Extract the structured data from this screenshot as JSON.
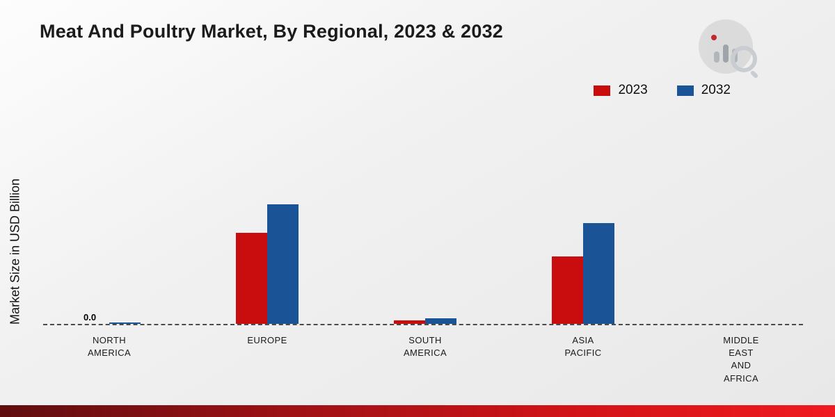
{
  "title": "Meat And Poultry Market, By Regional, 2023 & 2032",
  "ylabel": "Market Size in USD Billion",
  "zero_label": "0.0",
  "legend": [
    {
      "label": "2023",
      "color": "#c90d0e"
    },
    {
      "label": "2032",
      "color": "#1a5396"
    }
  ],
  "colors": {
    "series_2023": "#c90d0e",
    "series_2032": "#1a5396",
    "footer_red": "#d31318",
    "background": "#ececec"
  },
  "chart_data": {
    "type": "bar",
    "title": "Meat And Poultry Market, By Regional, 2023 & 2032",
    "xlabel": "",
    "ylabel": "Market Size in USD Billion",
    "categories": [
      "NORTH\nAMERICA",
      "EUROPE",
      "SOUTH\nAMERICA",
      "ASIA\nPACIFIC",
      "MIDDLE\nEAST\nAND\nAFRICA"
    ],
    "series": [
      {
        "name": "2023",
        "color": "#c90d0e",
        "values": [
          0.0,
          1.31,
          0.05,
          0.97,
          0.0
        ]
      },
      {
        "name": "2032",
        "color": "#1a5396",
        "values": [
          0.02,
          1.72,
          0.08,
          1.45,
          0.0
        ]
      }
    ],
    "ylim": [
      0,
      3.5
    ],
    "grid": false,
    "baseline_style": "dashed",
    "legend_position": "top-right",
    "annotations": [
      {
        "text": "0.0",
        "category_index": 0,
        "series": "2023"
      }
    ]
  }
}
